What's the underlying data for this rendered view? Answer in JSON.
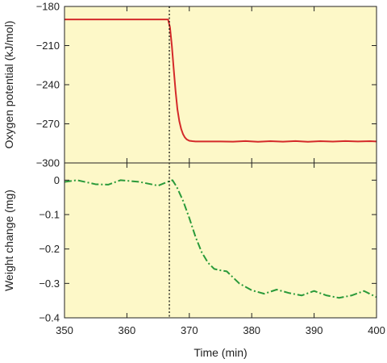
{
  "chart_data": {
    "type": "line",
    "background_color": "#fdf8c8",
    "shared_x": {
      "label": "Time (min)",
      "range": [
        350,
        400
      ],
      "ticks": [
        350,
        360,
        370,
        380,
        390,
        400
      ],
      "tick_labels": [
        "350",
        "360",
        "370",
        "380",
        "390",
        "400"
      ]
    },
    "marker_line": {
      "x": 366.8,
      "style": "dotted",
      "color": "#000000"
    },
    "panels": [
      {
        "ylabel": "Oxygen potential (kJ/mol)",
        "ylim": [
          -300,
          -180
        ],
        "yticks": [
          -180,
          -210,
          -240,
          -270,
          -300
        ],
        "ytick_labels": [
          "−180",
          "−210",
          "−240",
          "−270",
          "−300"
        ],
        "series": [
          {
            "style": "solid",
            "color": "#d42a2a",
            "x": [
              350,
              352,
              355,
              358,
              361,
              364,
              366.6,
              366.9,
              367.2,
              367.5,
              367.8,
              368.1,
              368.4,
              368.7,
              369.0,
              369.3,
              369.6,
              370.0,
              370.5,
              371,
              373,
              375,
              377,
              379,
              381,
              383,
              385,
              387,
              389,
              391,
              393,
              395,
              397,
              399,
              400
            ],
            "y": [
              -190,
              -190,
              -190,
              -190,
              -190,
              -190,
              -190,
              -196,
              -210,
              -228,
              -245,
              -259,
              -268,
              -274,
              -278,
              -280.5,
              -282,
              -283,
              -283.3,
              -283.5,
              -283.5,
              -283.5,
              -283.7,
              -283.2,
              -283.8,
              -283.3,
              -283.7,
              -283.2,
              -283.8,
              -283.3,
              -283.6,
              -283.2,
              -283.5,
              -283.3,
              -283.5
            ]
          }
        ]
      },
      {
        "ylabel": "Weight change (mg)",
        "ylim": [
          -0.4,
          0.05
        ],
        "yticks": [
          0,
          -0.1,
          -0.2,
          -0.3,
          -0.4
        ],
        "ytick_labels": [
          "0",
          "−0.1",
          "−0.2",
          "−0.3",
          "−0.4"
        ],
        "series": [
          {
            "style": "dash-dot",
            "color": "#2a9a3a",
            "x": [
              350,
              352,
              355,
              357,
              359,
              362,
              365,
              366.5,
              367.3,
              368,
              369,
              370,
              371,
              372,
              373,
              374,
              375,
              376,
              378,
              380,
              382,
              384,
              386,
              388,
              390,
              392,
              394,
              396,
              398,
              400
            ],
            "y": [
              -0.005,
              0.0,
              -0.012,
              -0.013,
              0.0,
              -0.005,
              -0.016,
              -0.005,
              0.0,
              -0.02,
              -0.06,
              -0.11,
              -0.165,
              -0.21,
              -0.24,
              -0.258,
              -0.262,
              -0.265,
              -0.3,
              -0.32,
              -0.33,
              -0.318,
              -0.328,
              -0.335,
              -0.322,
              -0.335,
              -0.342,
              -0.335,
              -0.322,
              -0.34
            ]
          }
        ]
      }
    ]
  }
}
